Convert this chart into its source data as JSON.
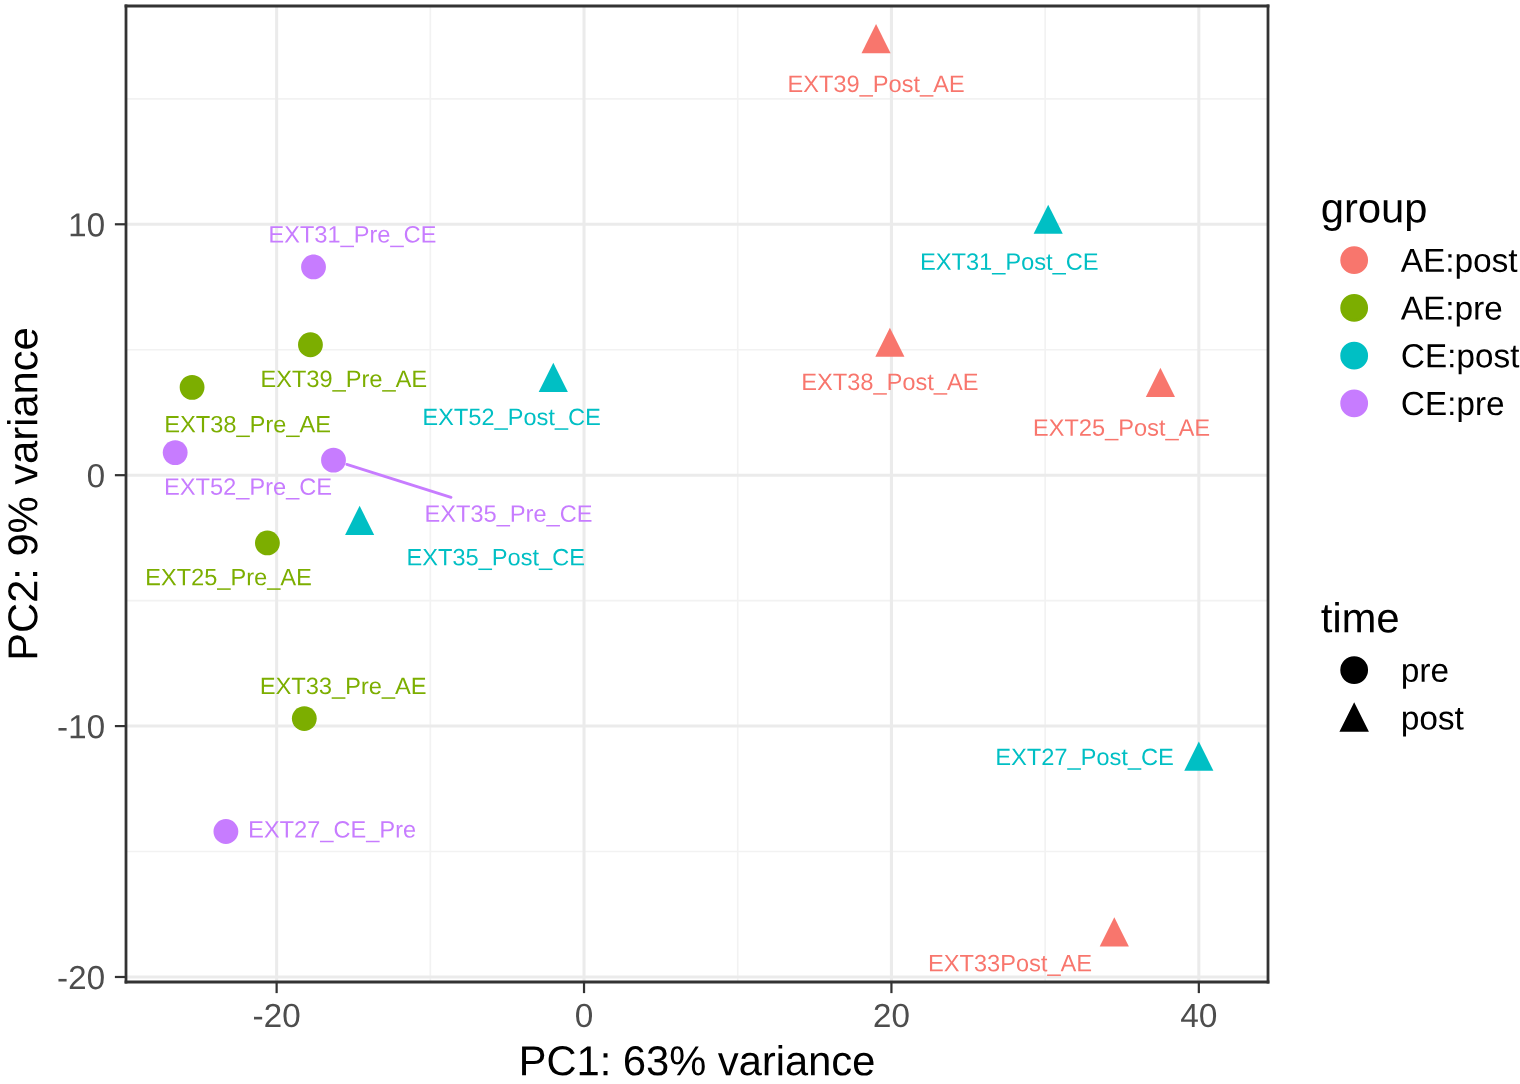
{
  "chart_data": {
    "type": "scatter",
    "xlabel": "PC1: 63% variance",
    "ylabel": "PC2: 9% variance",
    "legend_title": "group",
    "xlim": [
      -29.8,
      44.5
    ],
    "ylim": [
      -20.2,
      18.7
    ],
    "xticks": [
      -20,
      0,
      20,
      40
    ],
    "yticks": [
      -20,
      -10,
      0,
      10
    ],
    "grid": true,
    "legend": "right",
    "series": [
      {
        "name": "AE:post",
        "color": "#f8766d",
        "marker": "triangle",
        "x": [
          19.0,
          19.9,
          37.5,
          34.5
        ],
        "values": [
          17.4,
          5.3,
          3.7,
          -18.2
        ],
        "value_labels": [
          "EXT39_Post_AE",
          "EXT38_Post_AE",
          "EXT25_Post_AE",
          "EXT33Post_AE"
        ]
      },
      {
        "name": "AE:pre",
        "color": "#7cae00",
        "marker": "circle",
        "x": [
          -17.8,
          -25.5,
          -20.6,
          -18.2
        ],
        "values": [
          5.2,
          3.5,
          -2.7,
          -9.7
        ],
        "value_labels": [
          "EXT39_Pre_AE",
          "EXT38_Pre_AE",
          "EXT25_Pre_AE",
          "EXT33_Pre_AE"
        ]
      },
      {
        "name": "CE:post",
        "color": "#00bfc4",
        "marker": "triangle",
        "x": [
          30.2,
          -2.0,
          -14.6,
          40.0
        ],
        "values": [
          10.2,
          3.9,
          -1.8,
          -11.2
        ],
        "value_labels": [
          "EXT31_Post_CE",
          "EXT52_Post_CE",
          "EXT35_Post_CE",
          "EXT27_Post_CE"
        ]
      },
      {
        "name": "CE:pre",
        "color": "#c77cff",
        "marker": "circle",
        "x": [
          -17.6,
          -26.6,
          -16.3,
          -23.3
        ],
        "values": [
          8.3,
          0.9,
          0.6,
          -14.2
        ],
        "value_labels": [
          "EXT31_Pre_CE",
          "EXT52_Pre_CE",
          "EXT35_Pre_CE",
          "EXT27_CE_Pre"
        ]
      }
    ],
    "annotations": [
      "time",
      "pre",
      "post"
    ]
  }
}
